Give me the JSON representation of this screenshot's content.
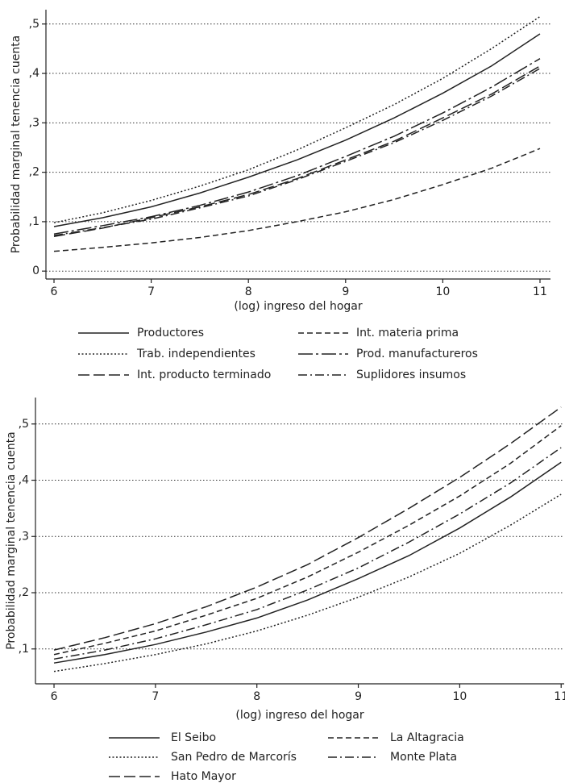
{
  "chart_data": [
    {
      "type": "line",
      "x_label": "(log) ingreso del hogar",
      "y_label": "Probabilidad marginal tenencia cuenta",
      "x": [
        6,
        6.5,
        7,
        7.5,
        8,
        8.5,
        9,
        9.5,
        10,
        10.5,
        11
      ],
      "xlim": [
        5.917,
        11.108
      ],
      "xticks": [
        6,
        7,
        8,
        9,
        10,
        11
      ],
      "ylim": [
        -0.016,
        0.529
      ],
      "yticks": [
        0,
        {
          "value": 0.1,
          "label": ",1"
        },
        {
          "value": 0.2,
          "label": ",2"
        },
        {
          "value": 0.3,
          "label": ",3"
        },
        {
          "value": 0.4,
          "label": ",4"
        },
        {
          "value": 0.5,
          "label": ",5"
        }
      ],
      "grid": true,
      "series": [
        {
          "name": "Productores",
          "color": "#222",
          "dash": "solid",
          "values": [
            0.09,
            0.108,
            0.13,
            0.158,
            0.19,
            0.225,
            0.265,
            0.31,
            0.36,
            0.415,
            0.48
          ]
        },
        {
          "name": "Trab. independientes",
          "color": "#222",
          "dash": "dotted",
          "values": [
            0.098,
            0.118,
            0.143,
            0.172,
            0.205,
            0.245,
            0.29,
            0.337,
            0.39,
            0.45,
            0.515
          ]
        },
        {
          "name": "Int. producto terminado",
          "color": "#222",
          "dash": "longdash",
          "values": [
            0.07,
            0.087,
            0.108,
            0.13,
            0.155,
            0.187,
            0.225,
            0.263,
            0.31,
            0.358,
            0.415
          ]
        },
        {
          "name": "Int. materia prima",
          "color": "#222",
          "dash": "dash",
          "values": [
            0.04,
            0.048,
            0.057,
            0.068,
            0.082,
            0.1,
            0.12,
            0.145,
            0.175,
            0.208,
            0.248
          ]
        },
        {
          "name": "Prod. manufactureros",
          "color": "#222",
          "dash": "longdashdot",
          "values": [
            0.075,
            0.092,
            0.11,
            0.133,
            0.16,
            0.193,
            0.232,
            0.273,
            0.32,
            0.372,
            0.43
          ]
        },
        {
          "name": "Suplidores insumos",
          "color": "#222",
          "dash": "dashdot",
          "values": [
            0.072,
            0.088,
            0.105,
            0.128,
            0.152,
            0.185,
            0.222,
            0.26,
            0.305,
            0.354,
            0.41
          ]
        }
      ]
    },
    {
      "type": "line",
      "x_label": "(log) ingreso del hogar",
      "y_label": "Probabilidad marginal tenencia cuenta",
      "x": [
        6,
        6.5,
        7,
        7.5,
        8,
        8.5,
        9,
        9.5,
        10,
        10.5,
        11
      ],
      "xlim": [
        5.817,
        11.03
      ],
      "xticks": [
        6,
        7,
        8,
        9,
        10,
        11
      ],
      "ylim": [
        0.038,
        0.547
      ],
      "yticks": [
        {
          "value": 0.1,
          "label": ",1"
        },
        {
          "value": 0.2,
          "label": ",2"
        },
        {
          "value": 0.3,
          "label": ",3"
        },
        {
          "value": 0.4,
          "label": ",4"
        },
        {
          "value": 0.5,
          "label": ",5"
        }
      ],
      "grid": true,
      "series": [
        {
          "name": "El Seibo",
          "color": "#222",
          "dash": "solid",
          "values": [
            0.075,
            0.09,
            0.108,
            0.13,
            0.155,
            0.187,
            0.225,
            0.266,
            0.315,
            0.37,
            0.432
          ]
        },
        {
          "name": "San Pedro de Marcorís",
          "color": "#222",
          "dash": "dotted",
          "values": [
            0.06,
            0.074,
            0.09,
            0.109,
            0.132,
            0.16,
            0.192,
            0.228,
            0.27,
            0.32,
            0.375
          ]
        },
        {
          "name": "Hato Mayor",
          "color": "#222",
          "dash": "longdash",
          "values": [
            0.098,
            0.12,
            0.145,
            0.175,
            0.21,
            0.25,
            0.298,
            0.35,
            0.405,
            0.465,
            0.53
          ]
        },
        {
          "name": "La Altagracia",
          "color": "#222",
          "dash": "dash",
          "values": [
            0.09,
            0.11,
            0.132,
            0.16,
            0.19,
            0.228,
            0.272,
            0.32,
            0.372,
            0.43,
            0.497
          ]
        },
        {
          "name": "Monte Plata",
          "color": "#222",
          "dash": "dashdot",
          "values": [
            0.082,
            0.098,
            0.118,
            0.143,
            0.17,
            0.205,
            0.244,
            0.29,
            0.34,
            0.395,
            0.458
          ]
        }
      ]
    }
  ]
}
